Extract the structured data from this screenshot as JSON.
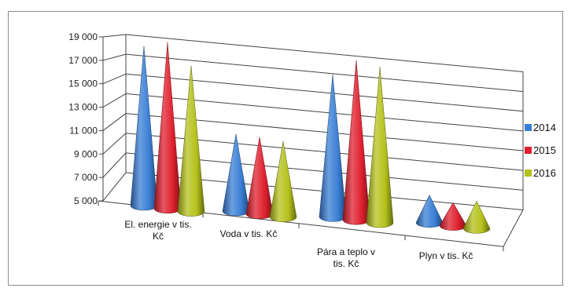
{
  "chart_data": {
    "type": "bar",
    "shape": "cone-3d",
    "title": "",
    "xlabel": "",
    "ylabel": "",
    "ylim": [
      5000,
      19000
    ],
    "y_ticks": [
      "19 000",
      "17 000",
      "15 000",
      "13 000",
      "11 000",
      "9 000",
      "7 000",
      "5 000"
    ],
    "y_tick_values": [
      19000,
      17000,
      15000,
      13000,
      11000,
      9000,
      7000,
      5000
    ],
    "grid": true,
    "legend_position": "right",
    "categories": [
      {
        "lines": [
          "El. energie v tis.",
          "Kč"
        ]
      },
      {
        "lines": [
          "Voda v tis. Kč"
        ]
      },
      {
        "lines": [
          "Pára a teplo  v",
          "tis.  Kč"
        ]
      },
      {
        "lines": [
          "Plyn v tis. Kč"
        ]
      }
    ],
    "series": [
      {
        "name": "2014",
        "color": "#3a7fd5",
        "values": [
          17000,
          9800,
          15500,
          5500
        ]
      },
      {
        "name": "2015",
        "color": "#e0202e",
        "values": [
          17600,
          9800,
          17000,
          5100
        ]
      },
      {
        "name": "2016",
        "color": "#b5c21b",
        "values": [
          15800,
          9700,
          16700,
          5500
        ]
      }
    ]
  }
}
